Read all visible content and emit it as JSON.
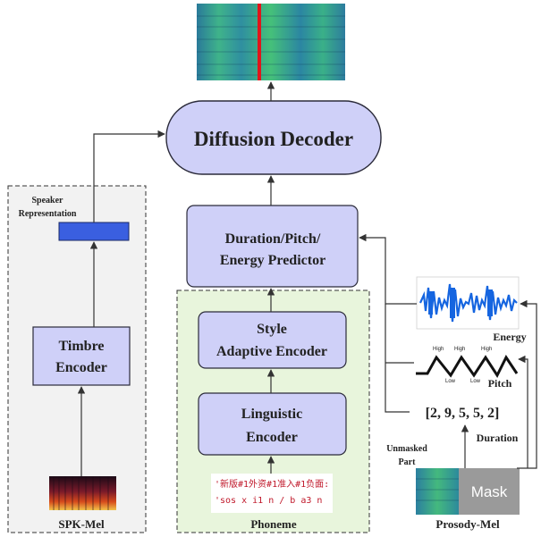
{
  "blocks": {
    "diffusion_decoder": "Diffusion Decoder",
    "predictor_line1": "Duration/Pitch/",
    "predictor_line2": "Energy Predictor",
    "style_line1": "Style",
    "style_line2": "Adaptive Encoder",
    "linguistic_line1": "Linguistic",
    "linguistic_line2": "Encoder",
    "timbre_line1": "Timbre",
    "timbre_line2": "Encoder"
  },
  "labels": {
    "speaker_line1": "Speaker",
    "speaker_line2": "Representation",
    "spk_mel": "SPK-Mel",
    "phoneme": "Phoneme",
    "energy": "Energy",
    "pitch": "Pitch",
    "duration": "Duration",
    "unmasked_line1": "Unmasked",
    "unmasked_line2": "Part",
    "prosody_mel": "Prosody-Mel",
    "mask": "Mask",
    "duration_values": "[2, 9, 5, 5, 2]"
  },
  "phoneme_text": {
    "line1": "'新版#1外资#1准入#1负面:",
    "line2": "'sos x i1 n / b a3 n"
  },
  "pitch_curve": {
    "high": "High",
    "low": "Low"
  },
  "colors": {
    "block_fill": "#cfd0f8",
    "block_stroke": "#2b2b3a",
    "speaker_vector": "#3a5fe0",
    "phoneme_bg": "#e8f5dc",
    "speaker_bg": "#f2f2f2",
    "energy_wave": "#1565e0",
    "spectrogram_marker": "#e0161a",
    "phoneme_text": "#c0182a"
  }
}
